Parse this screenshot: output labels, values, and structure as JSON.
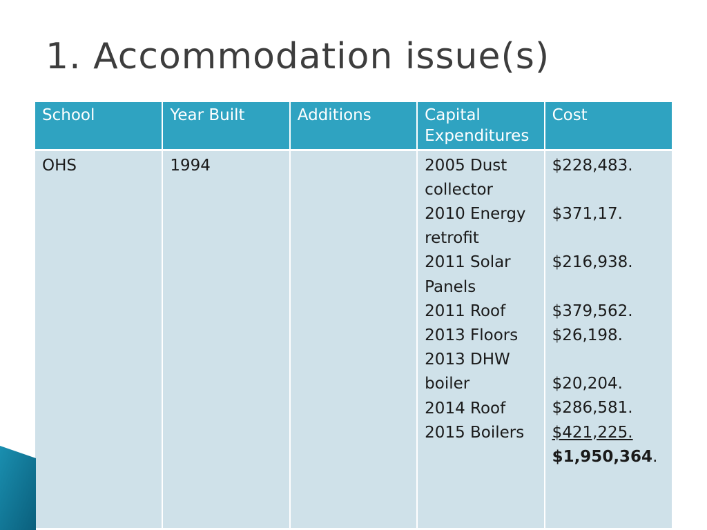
{
  "slide": {
    "title": "1. Accommodation issue(s)"
  },
  "table": {
    "headers": [
      "School",
      "Year Built",
      "Additions",
      "Capital Expenditures",
      "Cost"
    ],
    "row": {
      "school": "OHS",
      "year_built": "1994",
      "additions": "",
      "expenditure_lines": [
        "2005 Dust",
        "collector",
        "2010 Energy",
        "retrofit",
        "2011 Solar",
        "Panels",
        "2011 Roof",
        "2013 Floors",
        "2013 DHW",
        "boiler",
        "2014 Roof",
        "2015 Boilers"
      ],
      "cost_lines": [
        "$228,483.",
        "",
        "$371,17.",
        "",
        "$216,938.",
        "",
        "$379,562.",
        "$26,198.",
        "",
        "$20,204.",
        "$286,581.",
        "$421,225."
      ],
      "total_amount": "$1,950,364",
      "total_suffix": "."
    }
  },
  "colors": {
    "header_bg": "#2fa3c1",
    "body_bg": "#cfe1e9",
    "title_text": "#3d3d3d",
    "accent_dark": "#0f6a86"
  }
}
